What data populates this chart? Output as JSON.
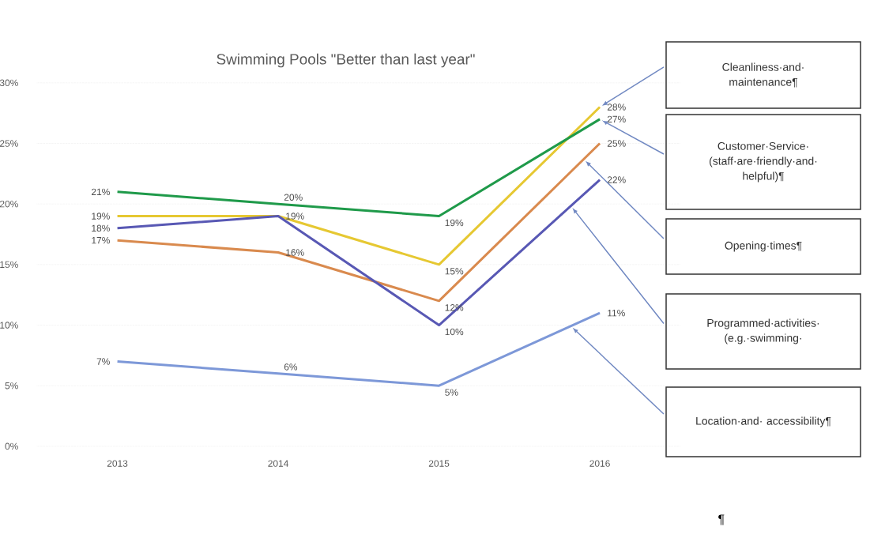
{
  "chart_data": {
    "type": "line",
    "title": "Swimming Pools \"Better than last year\"",
    "categories": [
      "2013",
      "2014",
      "2015",
      "2016"
    ],
    "series": [
      {
        "name": "Cleanliness·and· maintenance¶",
        "color": "#e6c832",
        "values": [
          19,
          19,
          15,
          28
        ],
        "value_labels": [
          "19%",
          null,
          "15%",
          "28%"
        ]
      },
      {
        "name": "Customer·Service· (staff·are·friendly·and· helpful)¶",
        "color": "#1f9a4a",
        "values": [
          21,
          20,
          19,
          27
        ],
        "value_labels": [
          "21%",
          "20%",
          "19%",
          "27%"
        ]
      },
      {
        "name": "Opening·times¶",
        "color": "#d98a4e",
        "values": [
          17,
          16,
          12,
          25
        ],
        "value_labels": [
          "17%",
          "16%",
          "12%",
          "25%"
        ]
      },
      {
        "name": "Programmed·activities· (e.g.·swimming·",
        "color": "#5858b4",
        "values": [
          18,
          19,
          10,
          22
        ],
        "value_labels": [
          "18%",
          "19%",
          "10%",
          "22%"
        ]
      },
      {
        "name": "Location·and· accessibility¶",
        "color": "#7d98d8",
        "values": [
          7,
          6,
          5,
          11
        ],
        "value_labels": [
          "7%",
          "6%",
          "5%",
          "11%"
        ]
      }
    ],
    "ylim": [
      0,
      30
    ],
    "yticks": [
      {
        "value": 0,
        "label": "0%"
      },
      {
        "value": 5,
        "label": "5%"
      },
      {
        "value": 10,
        "label": "10%"
      },
      {
        "value": 15,
        "label": "15%"
      },
      {
        "value": 20,
        "label": "20%"
      },
      {
        "value": 25,
        "label": "25%"
      },
      {
        "value": 30,
        "label": "30%"
      }
    ],
    "grid": "y",
    "marker": "none",
    "line_style": "solid",
    "annotations": [
      "¶"
    ]
  }
}
